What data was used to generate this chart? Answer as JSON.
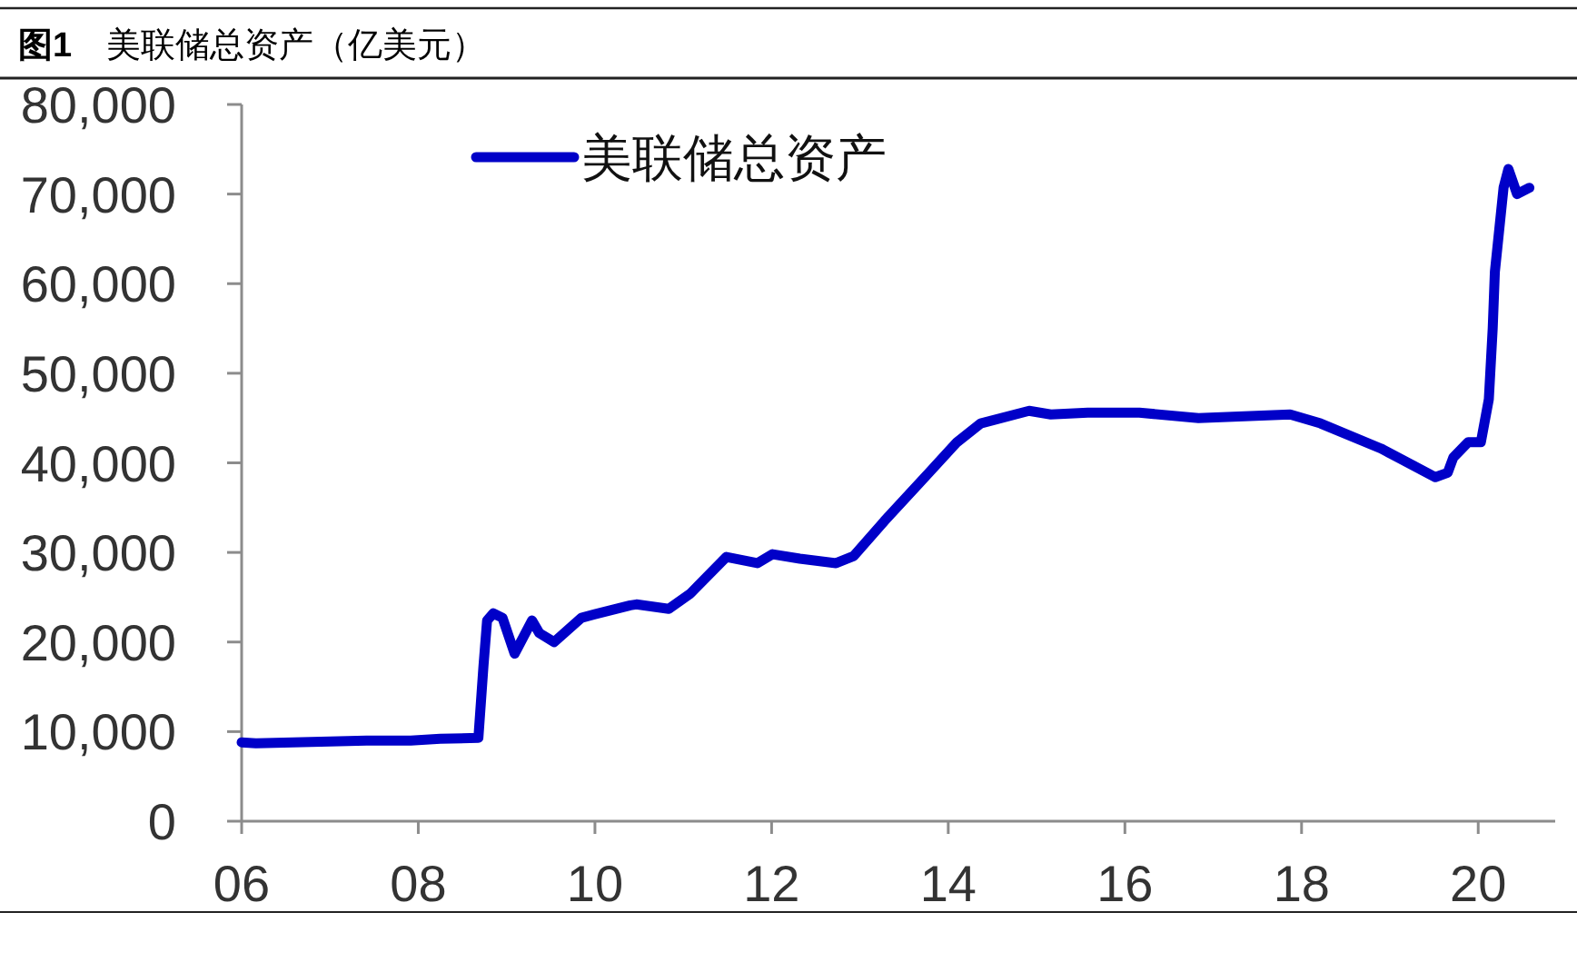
{
  "chart_data": {
    "type": "line",
    "title": "**图1**　美联储总资产（亿美元）",
    "x": [
      "2006-01-01",
      "2006-03-01",
      "2006-08-01",
      "2007-01-01",
      "2007-06-01",
      "2007-12-01",
      "2008-04-01",
      "2008-09-06",
      "2008-09-27",
      "2008-10-12",
      "2008-11-07",
      "2008-12-15",
      "2009-02-03",
      "2009-04-16",
      "2009-05-16",
      "2009-07-16",
      "2009-11-06",
      "2010-01-01",
      "2010-05-27",
      "2010-06-21",
      "2010-11-02",
      "2011-01-30",
      "2011-06-28",
      "2011-11-03",
      "2012-01-05",
      "2012-04-27",
      "2012-09-24",
      "2012-12-06",
      "2013-04-12",
      "2013-09-09",
      "2014-02-06",
      "2014-05-15",
      "2014-12-01",
      "2015-03-01",
      "2015-08-01",
      "2016-03-01",
      "2016-11-01",
      "2017-11-15",
      "2018-03-20",
      "2018-11-25",
      "2019-07-08",
      "2019-08-28",
      "2019-09-20",
      "2019-11-20",
      "2020-01-12",
      "2020-02-14",
      "2020-03-01",
      "2020-03-10",
      "2020-04-15",
      "2020-05-05",
      "2020-06-10",
      "2020-07-31"
    ],
    "series": [
      {
        "name": "美联储总资产",
        "color": "#0000c8",
        "values": [
          8800,
          8700,
          8800,
          8900,
          9000,
          9000,
          9200,
          9300,
          17300,
          22400,
          23200,
          22700,
          18700,
          22400,
          21000,
          20000,
          22700,
          23100,
          24100,
          24200,
          23700,
          25400,
          29500,
          28800,
          29800,
          29300,
          28800,
          29600,
          33500,
          37900,
          42300,
          44400,
          45800,
          45400,
          45600,
          45600,
          45000,
          45400,
          44400,
          41600,
          38400,
          38900,
          40600,
          42300,
          42300,
          47100,
          55000,
          61300,
          70700,
          72800,
          70000,
          70700
        ]
      }
    ],
    "xlim": [
      "2006-01-01",
      "2020-11-15"
    ],
    "xticks": [
      {
        "value": "2006-01-01",
        "label": "06"
      },
      {
        "value": "2008-01-01",
        "label": "08"
      },
      {
        "value": "2010-01-01",
        "label": "10"
      },
      {
        "value": "2012-01-01",
        "label": "12"
      },
      {
        "value": "2014-01-01",
        "label": "14"
      },
      {
        "value": "2016-01-01",
        "label": "16"
      },
      {
        "value": "2018-01-01",
        "label": "18"
      },
      {
        "value": "2020-01-01",
        "label": "20"
      }
    ],
    "ylim": [
      0,
      80000
    ],
    "yticks": [
      0,
      {
        "value": 10000,
        "label": "10,000"
      },
      {
        "value": 20000,
        "label": "20,000"
      },
      {
        "value": 30000,
        "label": "30,000"
      },
      {
        "value": 40000,
        "label": "40,000"
      },
      {
        "value": 50000,
        "label": "50,000"
      },
      {
        "value": 60000,
        "label": "60,000"
      },
      {
        "value": 70000,
        "label": "70,000"
      },
      {
        "value": 80000,
        "label": "80,000"
      }
    ],
    "legend": "top left",
    "grid": false,
    "marker": "none",
    "line_style": "solid"
  }
}
